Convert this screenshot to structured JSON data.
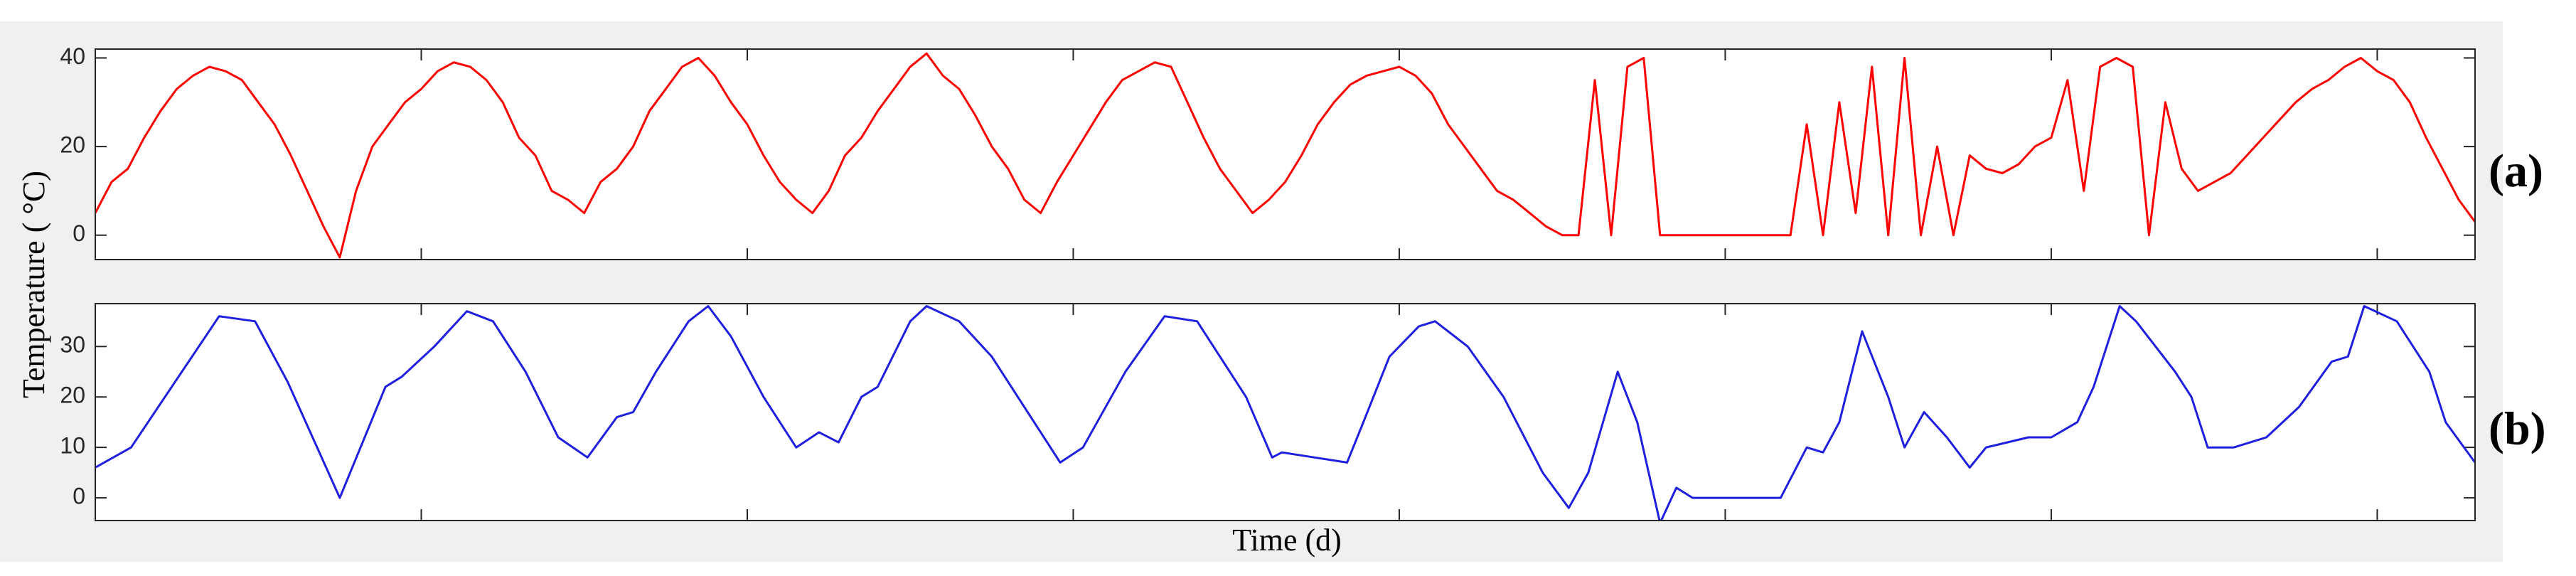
{
  "chart_data": [
    {
      "type": "line",
      "label": "(a)",
      "ylabel": "Temperature ( °C)",
      "color": "#ff0000",
      "xlim": [
        0,
        730
      ],
      "xticks": [
        100,
        200,
        300,
        400,
        500,
        600,
        700
      ],
      "ylim": [
        -5.5,
        42
      ],
      "yticks": [
        0,
        20,
        40
      ],
      "x": [
        0,
        5,
        10,
        15,
        20,
        25,
        30,
        35,
        40,
        45,
        50,
        55,
        60,
        65,
        70,
        75,
        80,
        85,
        90,
        95,
        100,
        105,
        110,
        115,
        120,
        125,
        130,
        135,
        140,
        145,
        150,
        155,
        160,
        165,
        170,
        175,
        180,
        185,
        190,
        195,
        200,
        205,
        210,
        215,
        220,
        225,
        230,
        235,
        240,
        245,
        250,
        255,
        260,
        265,
        270,
        275,
        280,
        285,
        290,
        295,
        300,
        305,
        310,
        315,
        320,
        325,
        330,
        335,
        340,
        345,
        350,
        355,
        360,
        365,
        370,
        375,
        380,
        385,
        390,
        395,
        400,
        405,
        410,
        415,
        420,
        425,
        430,
        435,
        440,
        445,
        450,
        455,
        460,
        465,
        470,
        475,
        480,
        485,
        490,
        495,
        500,
        505,
        510,
        515,
        520,
        525,
        530,
        535,
        540,
        545,
        550,
        555,
        560,
        565,
        570,
        575,
        580,
        585,
        590,
        595,
        600,
        605,
        610,
        615,
        620,
        625,
        630,
        635,
        640,
        645,
        650,
        655,
        660,
        665,
        670,
        675,
        680,
        685,
        690,
        695,
        700,
        705,
        710,
        715,
        720,
        725,
        730
      ],
      "values": [
        5,
        12,
        15,
        22,
        28,
        33,
        36,
        38,
        37,
        35,
        30,
        25,
        18,
        10,
        2,
        -5,
        10,
        20,
        25,
        30,
        33,
        37,
        39,
        38,
        35,
        30,
        22,
        18,
        10,
        8,
        5,
        12,
        15,
        20,
        28,
        33,
        38,
        40,
        36,
        30,
        25,
        18,
        12,
        8,
        5,
        10,
        18,
        22,
        28,
        33,
        38,
        41,
        36,
        33,
        27,
        20,
        15,
        8,
        5,
        12,
        18,
        24,
        30,
        35,
        37,
        39,
        38,
        30,
        22,
        15,
        10,
        5,
        8,
        12,
        18,
        25,
        30,
        34,
        36,
        37,
        38,
        36,
        32,
        25,
        20,
        15,
        10,
        8,
        5,
        2,
        0,
        0,
        35,
        0,
        38,
        40,
        0,
        0,
        0,
        0,
        0,
        0,
        0,
        0,
        0,
        25,
        0,
        30,
        5,
        38,
        0,
        40,
        0,
        20,
        0,
        18,
        15,
        14,
        16,
        20,
        22,
        35,
        10,
        38,
        40,
        38,
        0,
        30,
        15,
        10,
        12,
        14,
        18,
        22,
        26,
        30,
        33,
        35,
        38,
        40,
        37,
        35,
        30,
        22,
        15,
        8,
        3
      ]
    },
    {
      "type": "line",
      "label": "(b)",
      "xlabel": "Time (d)",
      "color": "#1f1fe0",
      "xlim": [
        0,
        730
      ],
      "xticks": [
        100,
        200,
        300,
        400,
        500,
        600,
        700
      ],
      "ylim": [
        -4.5,
        38.5
      ],
      "yticks": [
        0,
        10,
        20,
        30
      ],
      "x": [
        0,
        11,
        38,
        49,
        59,
        75,
        89,
        94,
        104,
        114,
        122,
        132,
        142,
        151,
        160,
        165,
        172,
        182,
        188,
        195,
        205,
        215,
        222,
        228,
        235,
        240,
        250,
        255,
        265,
        275,
        283,
        293,
        296,
        303,
        316,
        328,
        338,
        353,
        361,
        364,
        374,
        384,
        389,
        397,
        406,
        411,
        421,
        432,
        444,
        452,
        458,
        467,
        473,
        480,
        485,
        490,
        517,
        525,
        530,
        535,
        542,
        550,
        555,
        561,
        568,
        575,
        580,
        593,
        600,
        608,
        613,
        621,
        626,
        638,
        643,
        648,
        656,
        666,
        676,
        686,
        691,
        696,
        706,
        716,
        721,
        730
      ],
      "values": [
        6,
        10,
        36,
        35,
        23,
        0,
        22,
        24,
        30,
        37,
        35,
        25,
        12,
        8,
        16,
        17,
        25,
        35,
        38,
        32,
        20,
        10,
        13,
        11,
        20,
        22,
        35,
        38,
        35,
        28,
        20,
        10,
        7,
        10,
        25,
        36,
        35,
        20,
        8,
        9,
        8,
        7,
        15,
        28,
        34,
        35,
        30,
        20,
        5,
        -2,
        5,
        25,
        15,
        -5,
        2,
        0,
        0,
        10,
        9,
        15,
        33,
        20,
        10,
        17,
        12,
        6,
        10,
        12,
        12,
        15,
        22,
        38,
        35,
        25,
        20,
        10,
        10,
        12,
        18,
        27,
        28,
        38,
        35,
        25,
        15,
        7
      ]
    }
  ]
}
